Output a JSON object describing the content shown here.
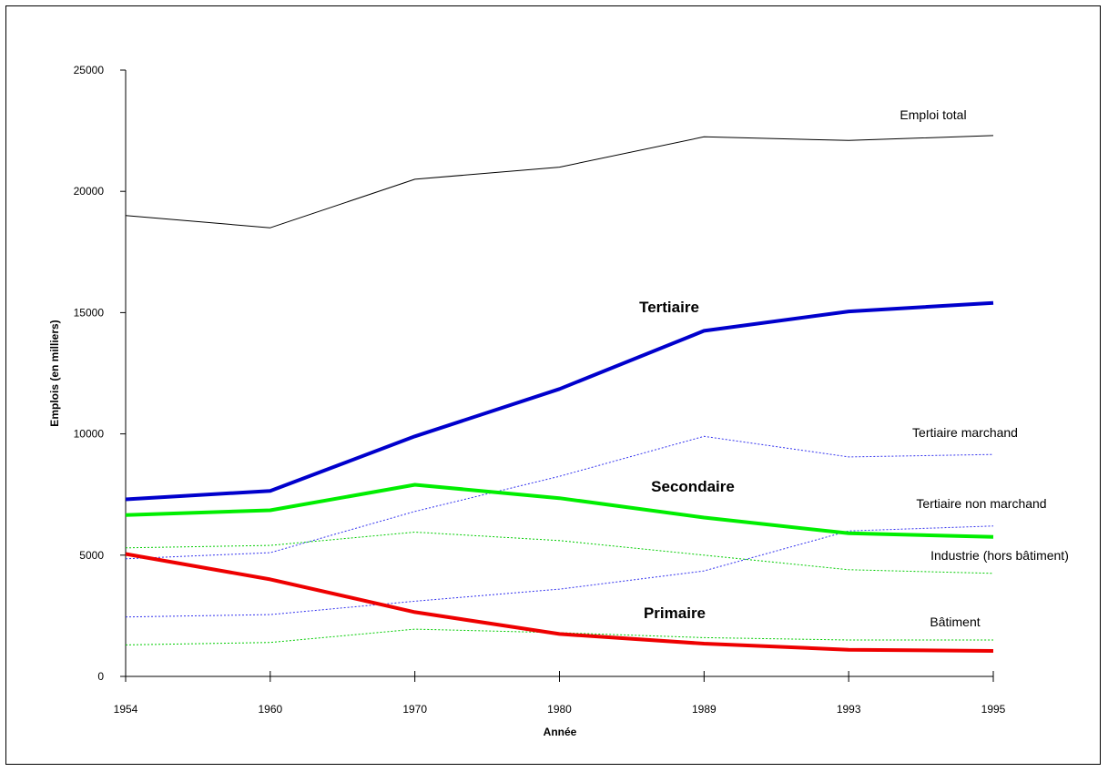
{
  "chart_data": {
    "type": "line",
    "title": "",
    "xlabel": "Année",
    "ylabel": "Emplois (en milliers)",
    "x": [
      "1954",
      "1960",
      "1970",
      "1980",
      "1989",
      "1993",
      "1995"
    ],
    "ylim": [
      0,
      25000
    ],
    "yticks": [
      "0",
      "5000",
      "10000",
      "15000",
      "20000",
      "25000"
    ],
    "grid": false,
    "legend": "inline labels",
    "series": [
      {
        "name": "Emploi total",
        "color": "#000000",
        "style": "solid-thin",
        "values": [
          19000,
          18500,
          20500,
          21000,
          22250,
          22100,
          22300
        ]
      },
      {
        "name": "Tertiaire",
        "color": "#0000cc",
        "style": "solid-thick",
        "values": [
          7300,
          7650,
          9900,
          11850,
          14250,
          15050,
          15400
        ]
      },
      {
        "name": "Tertiaire marchand",
        "color": "#3333ee",
        "style": "dotted",
        "values": [
          4850,
          5100,
          6800,
          8250,
          9900,
          9050,
          9150
        ]
      },
      {
        "name": "Secondaire",
        "color": "#00ee00",
        "style": "solid-thick",
        "values": [
          6650,
          6850,
          7900,
          7350,
          6550,
          5900,
          5750
        ]
      },
      {
        "name": "Tertiaire non marchand",
        "color": "#3333ee",
        "style": "dotted",
        "values": [
          2450,
          2550,
          3100,
          3600,
          4350,
          6000,
          6200
        ]
      },
      {
        "name": "Industrie (hors bâtiment)",
        "color": "#00cc00",
        "style": "dotted",
        "values": [
          5300,
          5400,
          5950,
          5600,
          5000,
          4400,
          4250
        ]
      },
      {
        "name": "Bâtiment",
        "color": "#00cc00",
        "style": "dotted",
        "values": [
          1300,
          1400,
          1950,
          1800,
          1600,
          1500,
          1500
        ]
      },
      {
        "name": "Primaire",
        "color": "#ee0000",
        "style": "solid-thick",
        "values": [
          5050,
          4000,
          2650,
          1750,
          1350,
          1100,
          1050
        ]
      }
    ]
  }
}
